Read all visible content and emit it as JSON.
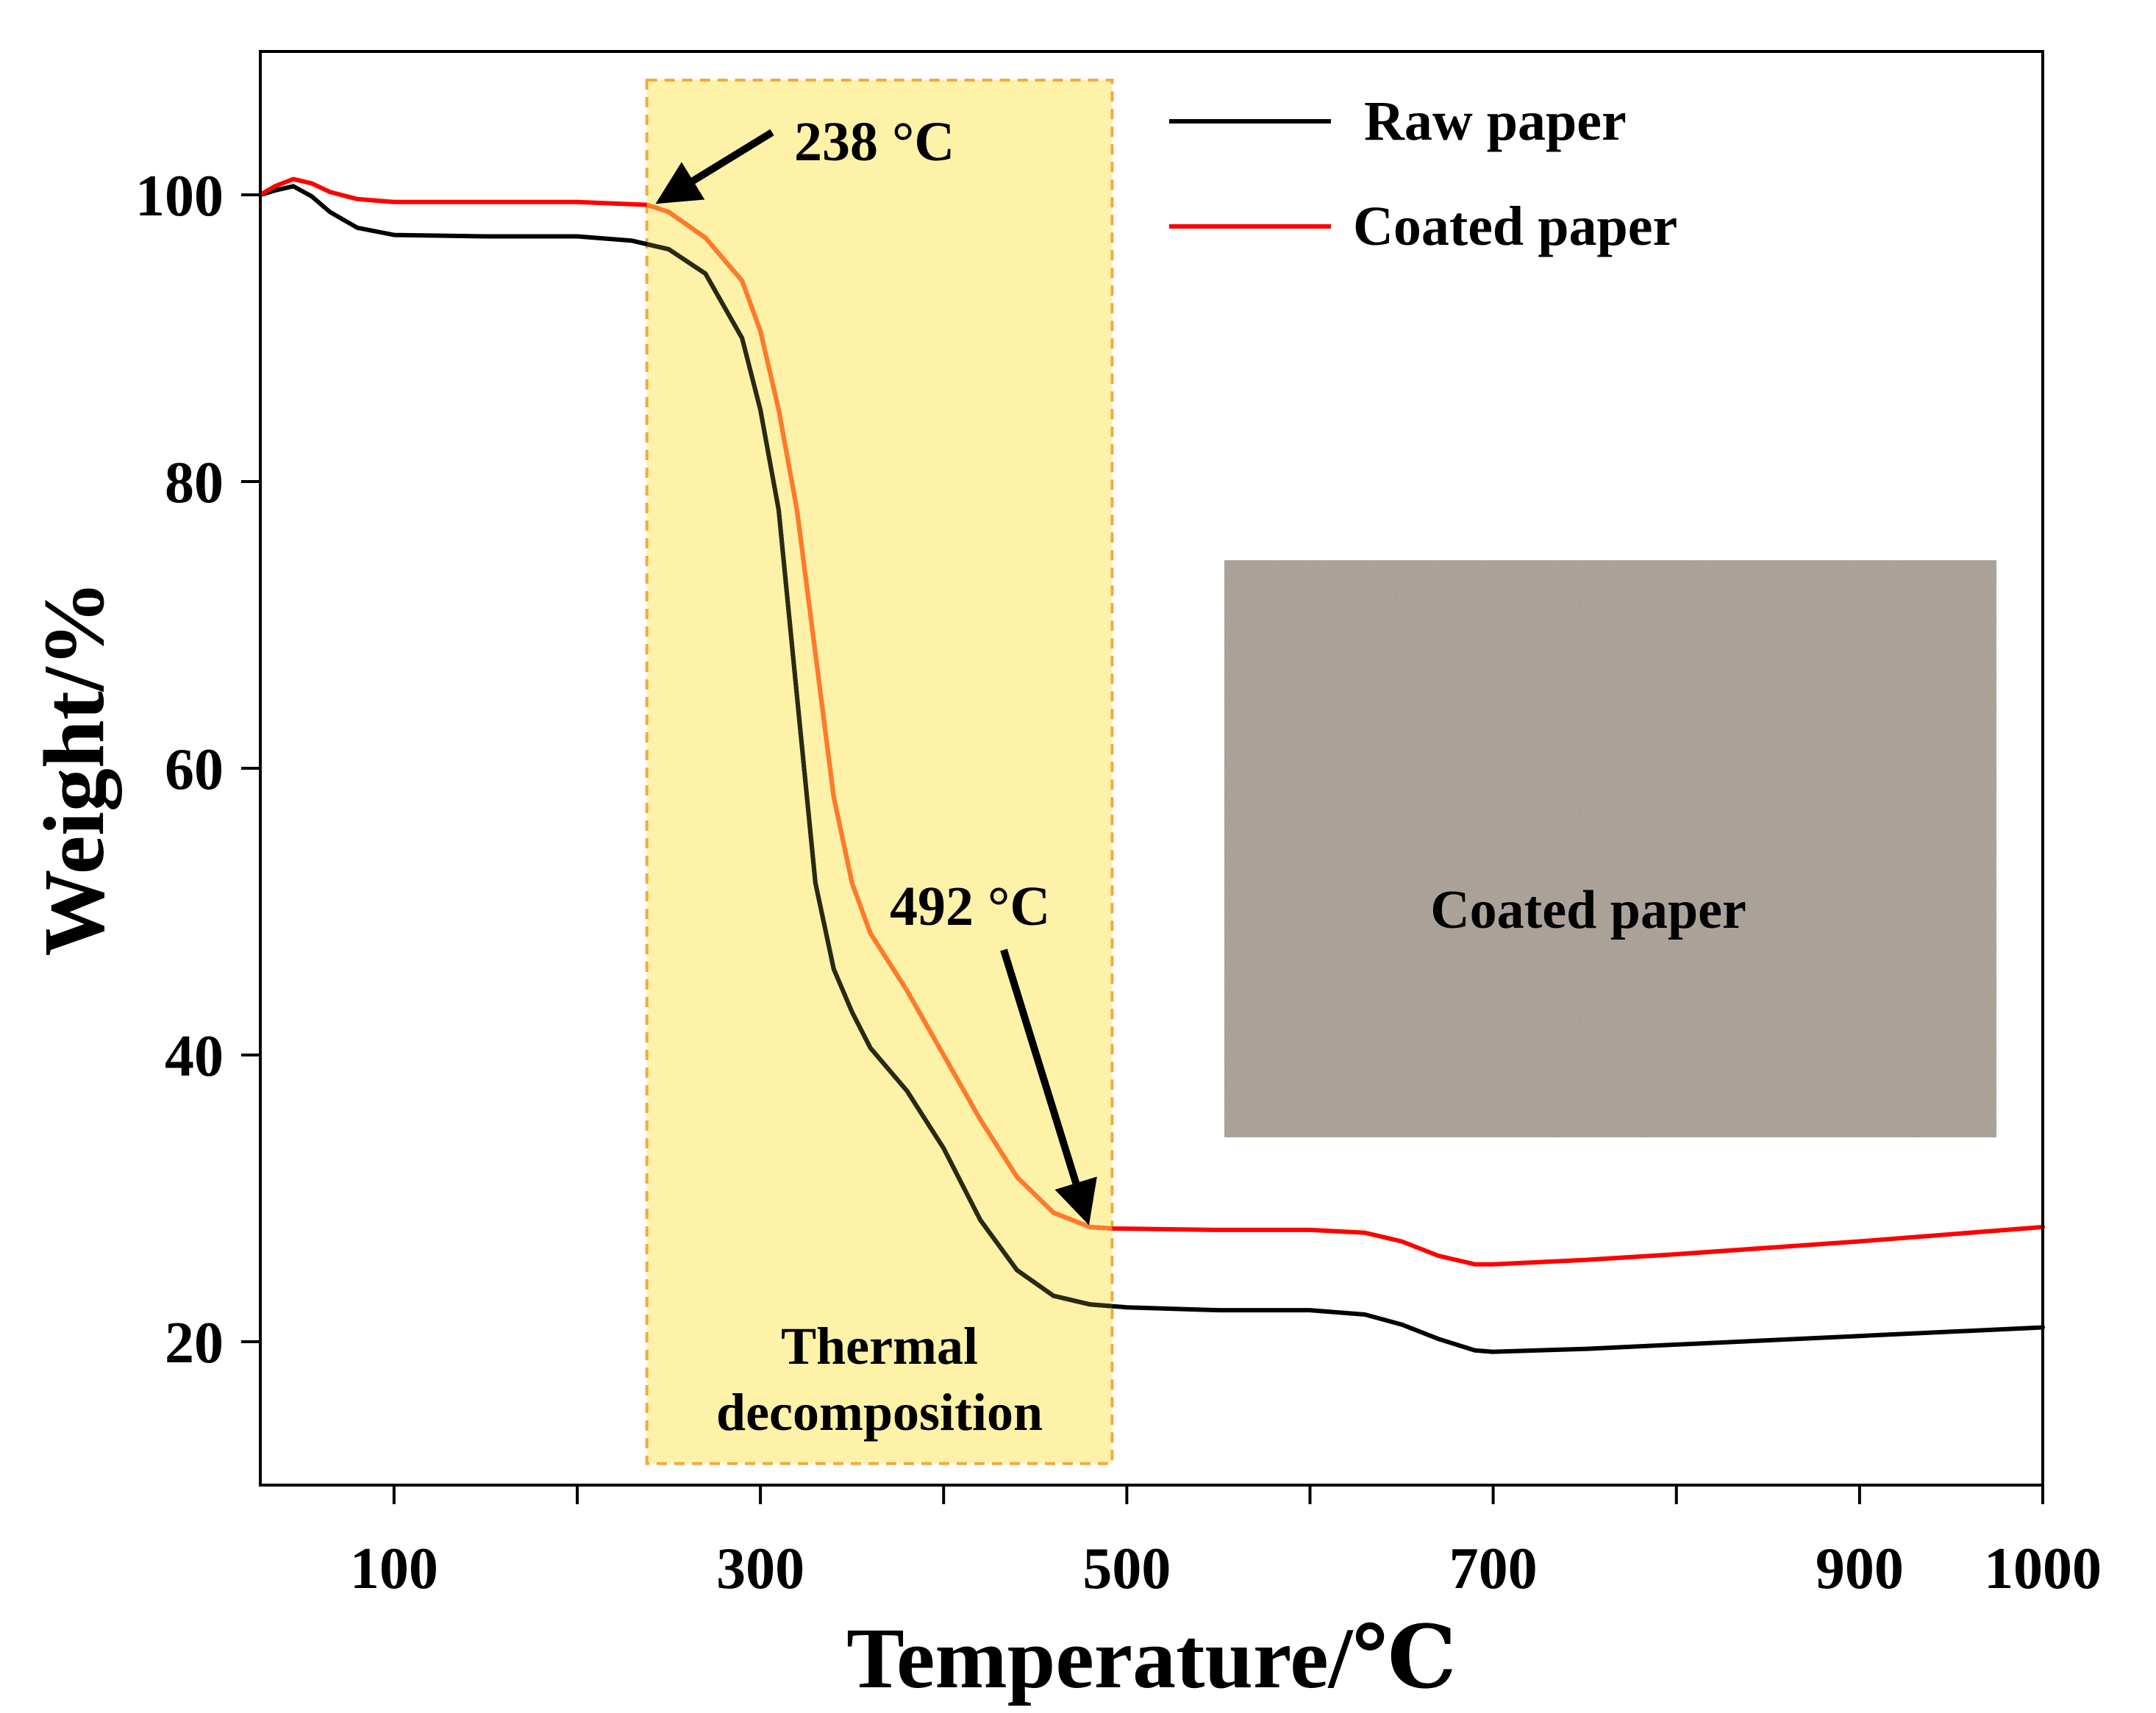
{
  "chart_data": {
    "type": "line",
    "title": "",
    "xlabel": "Temperature/℃",
    "ylabel": "Weight/%",
    "xlim": [
      27,
      1000
    ],
    "ylim": [
      10,
      110
    ],
    "xticks": [
      100,
      300,
      500,
      700,
      900,
      1000
    ],
    "xminor_ticks": [
      200,
      400,
      600,
      800
    ],
    "yticks": [
      20,
      40,
      60,
      80,
      100
    ],
    "legend_position": "top-right",
    "series": [
      {
        "name": "Raw paper",
        "color": "#000000",
        "x": [
          27,
          35,
          45,
          55,
          65,
          80,
          100,
          150,
          200,
          230,
          250,
          270,
          290,
          300,
          310,
          320,
          330,
          340,
          350,
          360,
          380,
          400,
          420,
          440,
          460,
          480,
          500,
          550,
          600,
          630,
          650,
          670,
          690,
          700,
          750,
          800,
          900,
          1000
        ],
        "y": [
          100,
          100.3,
          100.6,
          99.9,
          98.8,
          97.7,
          97.2,
          97.1,
          97.1,
          96.8,
          96.2,
          94.5,
          90,
          85,
          78,
          65,
          52,
          46,
          43,
          40.5,
          37.5,
          33.5,
          28.5,
          25,
          23.2,
          22.6,
          22.4,
          22.2,
          22.2,
          21.9,
          21.2,
          20.2,
          19.4,
          19.3,
          19.5,
          19.8,
          20.4,
          21
        ]
      },
      {
        "name": "Coated paper",
        "color": "#ff0000",
        "x": [
          27,
          35,
          45,
          55,
          65,
          80,
          100,
          150,
          200,
          238,
          250,
          270,
          290,
          300,
          310,
          320,
          330,
          340,
          350,
          360,
          380,
          400,
          420,
          440,
          460,
          480,
          492,
          550,
          600,
          630,
          650,
          670,
          690,
          700,
          750,
          800,
          900,
          1000
        ],
        "y": [
          100,
          100.6,
          101.1,
          100.8,
          100.2,
          99.7,
          99.5,
          99.5,
          99.5,
          99.3,
          98.8,
          97,
          94,
          90.5,
          85,
          78,
          68,
          58,
          52,
          48.5,
          44.5,
          40,
          35.5,
          31.5,
          29,
          28,
          27.9,
          27.8,
          27.8,
          27.6,
          27,
          26,
          25.4,
          25.4,
          25.7,
          26.1,
          27,
          28
        ]
      }
    ],
    "shaded_region": {
      "x_range": [
        238,
        492
      ],
      "y_range": [
        11.5,
        108
      ],
      "label_line1": "Thermal",
      "label_line2": "decomposition"
    },
    "annotations": [
      {
        "text": "238 °C",
        "points_to": [
          238,
          99.3
        ]
      },
      {
        "text": "492 °C",
        "points_to": [
          492,
          27.9
        ]
      }
    ],
    "inset": {
      "label": "Coated paper",
      "color": "#9e958b"
    }
  }
}
